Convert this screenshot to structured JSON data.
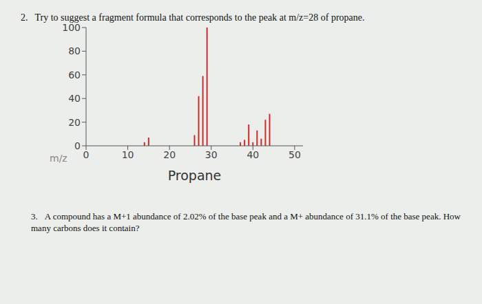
{
  "document": {
    "questions": [
      {
        "number": "2.",
        "text": "Try to suggest a fragment formula that corresponds to the peak at m/z=28 of propane."
      },
      {
        "number": "3.",
        "text": "A compound has a M+1 abundance of 2.02% of the base peak and a M+ abundance of 31.1% of the base peak. How many carbons does it contain?"
      }
    ]
  },
  "chart_data": {
    "type": "bar",
    "xlabel": "Propane",
    "annotations": [
      "m/z"
    ],
    "x": [
      14,
      15,
      26,
      27,
      28,
      29,
      37,
      38,
      39,
      40,
      41,
      42,
      43,
      44
    ],
    "values": [
      3,
      7,
      9,
      42,
      59,
      100,
      3,
      5,
      18,
      3,
      13,
      6,
      22,
      27
    ],
    "color": "#cc2a2a",
    "xlim": [
      0,
      52
    ],
    "xticks": [
      0,
      10,
      20,
      30,
      40,
      50
    ],
    "ylim": [
      0,
      100
    ],
    "yticks": [
      0,
      20,
      40,
      60,
      80,
      100
    ],
    "grid": false
  }
}
